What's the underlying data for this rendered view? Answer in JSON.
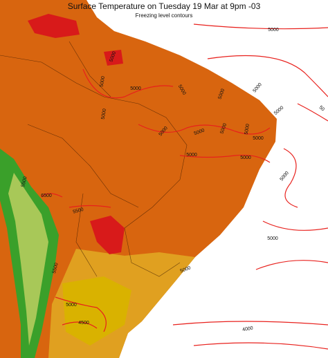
{
  "header": {
    "title": "Surface Temperature on Tuesday 19 Mar at 9pm -03",
    "subtitle": "Freezing level contours"
  },
  "contour_labels": [
    "5000",
    "5000",
    "5000",
    "5000",
    "5000",
    "5000",
    "5000",
    "5000",
    "50",
    "5000",
    "5000",
    "5000",
    "5000",
    "5000",
    "5000",
    "5000",
    "5000",
    "5000",
    "5500",
    "6500",
    "5500",
    "5000",
    "5500",
    "5000",
    "5000",
    "4500",
    "4000"
  ]
}
